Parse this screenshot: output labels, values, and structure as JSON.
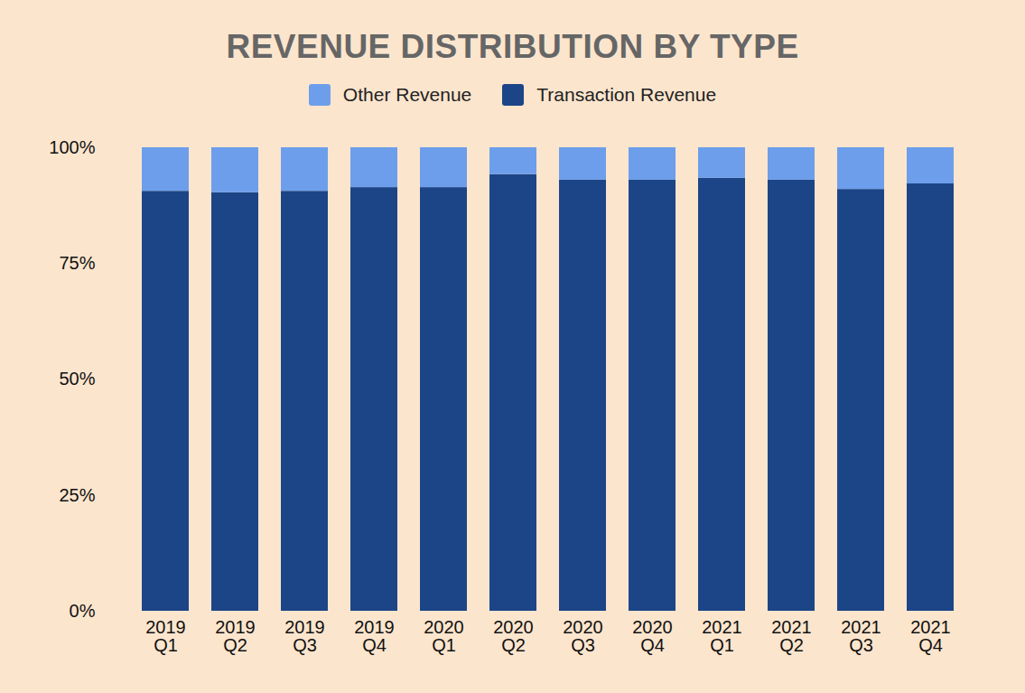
{
  "chart_data": {
    "type": "bar",
    "title": "REVENUE DISTRIBUTION BY TYPE",
    "stacked": true,
    "legend": "top",
    "grid": false,
    "categories": [
      "2019\nQ1",
      "2019\nQ2",
      "2019\nQ3",
      "2019\nQ4",
      "2020\nQ1",
      "2020\nQ2",
      "2020\nQ3",
      "2020\nQ4",
      "2021\nQ1",
      "2021\nQ2",
      "2021\nQ3",
      "2021\nQ4"
    ],
    "series": [
      {
        "name": "Other Revenue",
        "color": "#6d9eeb",
        "values": [
          9.4,
          9.7,
          9.4,
          8.6,
          8.6,
          5.8,
          7.0,
          7.0,
          6.6,
          7.0,
          9.0,
          7.8
        ]
      },
      {
        "name": "Transaction Revenue",
        "color": "#1c4587",
        "values": [
          90.6,
          90.3,
          90.6,
          91.4,
          91.4,
          94.2,
          93.0,
          93.0,
          93.4,
          93.0,
          91.0,
          92.2
        ]
      }
    ],
    "ylim": [
      0,
      100
    ],
    "yticks": [
      {
        "value": 0,
        "label": "0%"
      },
      {
        "value": 25,
        "label": "25%"
      },
      {
        "value": 50,
        "label": "50%"
      },
      {
        "value": 75,
        "label": "75%"
      },
      {
        "value": 100,
        "label": "100%"
      }
    ]
  }
}
